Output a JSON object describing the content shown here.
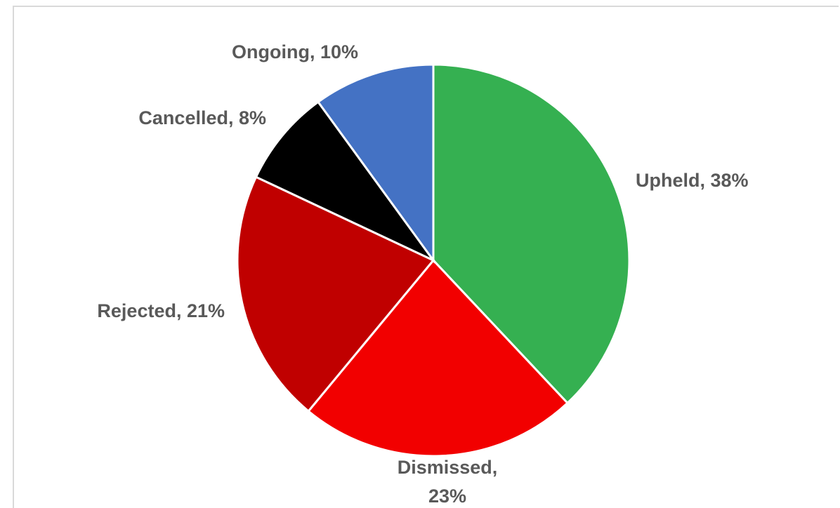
{
  "chart_data": {
    "type": "pie",
    "title": "",
    "legend": "none",
    "slices": [
      {
        "name": "Upheld",
        "value": 38,
        "label_line1": "Upheld, 38%",
        "label_line2": "",
        "color": "#35b051"
      },
      {
        "name": "Dismissed",
        "value": 23,
        "label_line1": "Dismissed,",
        "label_line2": "23%",
        "color": "#f20000"
      },
      {
        "name": "Rejected",
        "value": 21,
        "label_line1": "Rejected, 21%",
        "label_line2": "",
        "color": "#c00000"
      },
      {
        "name": "Cancelled",
        "value": 8,
        "label_line1": "Cancelled, 8%",
        "label_line2": "",
        "color": "#000000"
      },
      {
        "name": "Ongoing",
        "value": 10,
        "label_line1": "Ongoing, 10%",
        "label_line2": "",
        "color": "#4472c4"
      }
    ]
  }
}
